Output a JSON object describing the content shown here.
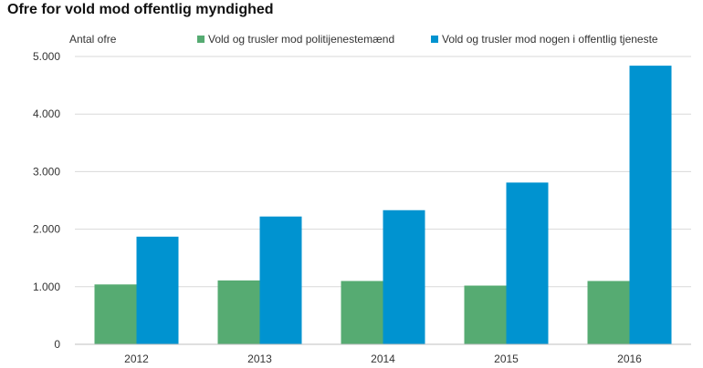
{
  "chart_data": {
    "type": "bar",
    "title": "Ofre for vold mod offentlig myndighed",
    "ylabel": "Antal ofre",
    "xlabel": "",
    "categories": [
      "2012",
      "2013",
      "2014",
      "2015",
      "2016"
    ],
    "series": [
      {
        "name": "Vold og trusler mod politijenestemænd",
        "color": "#56ab72",
        "values": [
          1040,
          1110,
          1100,
          1020,
          1100
        ]
      },
      {
        "name": "Vold og trusler mod nogen i offentlig tjeneste",
        "color": "#0093d0",
        "values": [
          1870,
          2220,
          2330,
          2810,
          4840
        ]
      }
    ],
    "ylim": [
      0,
      5000
    ],
    "yticks": [
      0,
      1000,
      2000,
      3000,
      4000,
      5000
    ],
    "ytick_labels": [
      "0",
      "1.000",
      "2.000",
      "3.000",
      "4.000",
      "5.000"
    ],
    "grid": true,
    "legend_position": "top-right"
  }
}
